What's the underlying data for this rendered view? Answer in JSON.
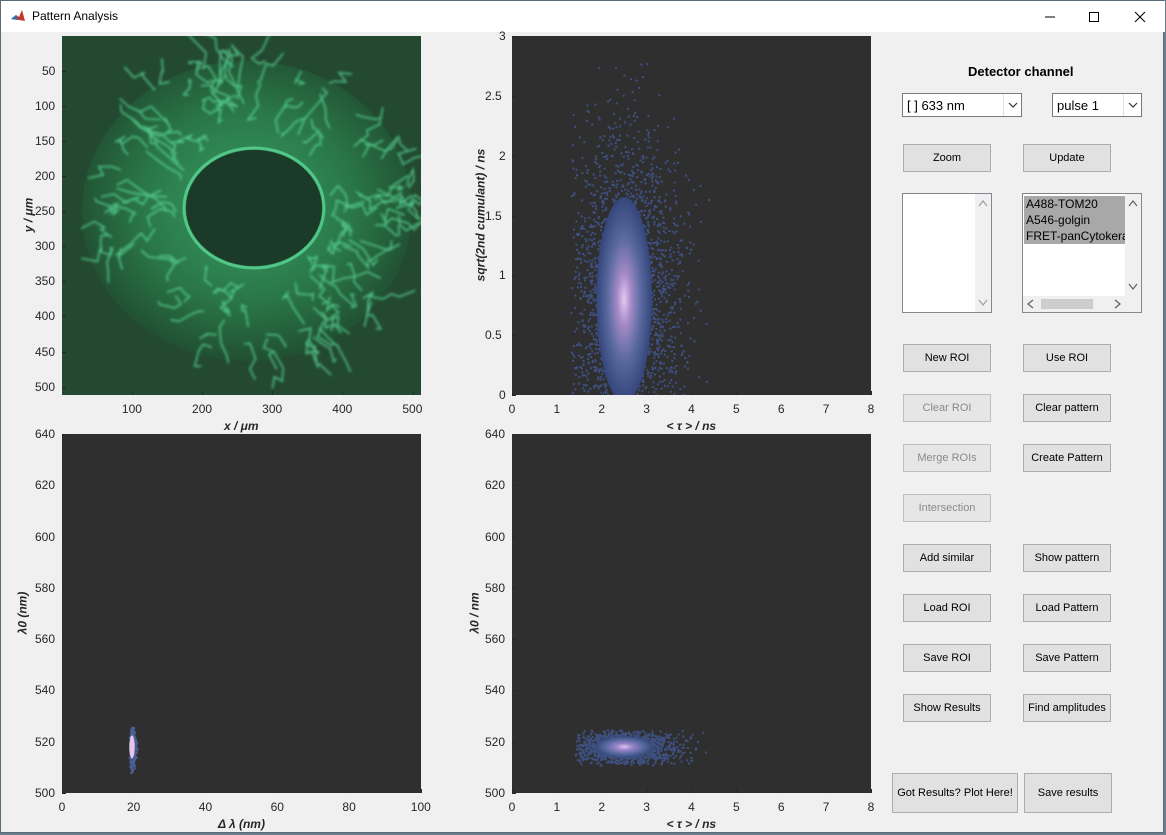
{
  "window": {
    "title": "Pattern Analysis"
  },
  "image_panel": {
    "ylabel": "y / μm",
    "xlabel": "x / μm",
    "yticks": [
      "50",
      "100",
      "150",
      "200",
      "250",
      "300",
      "350",
      "400",
      "450",
      "500"
    ],
    "xticks": [
      "100",
      "200",
      "300",
      "400",
      "500"
    ]
  },
  "scatter_top": {
    "ylabel": "sqrt(2nd cumulant) / ns",
    "xlabel": "< τ > / ns",
    "yticks": [
      "0",
      "0.5",
      "1",
      "1.5",
      "2",
      "2.5",
      "3"
    ],
    "xticks": [
      "0",
      "1",
      "2",
      "3",
      "4",
      "5",
      "6",
      "7",
      "8"
    ]
  },
  "scatter_bottom_left": {
    "ylabel": "λ0 (nm)",
    "xlabel": "Δ λ (nm)",
    "yticks": [
      "500",
      "520",
      "540",
      "560",
      "580",
      "600",
      "620",
      "640"
    ],
    "xticks": [
      "0",
      "20",
      "40",
      "60",
      "80",
      "100"
    ]
  },
  "scatter_bottom_right": {
    "ylabel": "λ0 / nm",
    "xlabel": "< τ > / ns",
    "yticks": [
      "500",
      "520",
      "540",
      "560",
      "580",
      "600",
      "620",
      "640"
    ],
    "xticks": [
      "0",
      "1",
      "2",
      "3",
      "4",
      "5",
      "6",
      "7",
      "8"
    ]
  },
  "controls": {
    "header": "Detector channel",
    "channel_select": "[ ] 633 nm",
    "pulse_select": "pulse 1",
    "pattern_list": [
      "A488-TOM20",
      "A546-golgin",
      "FRET-panCytokeratin"
    ],
    "buttons": {
      "zoom": "Zoom",
      "update": "Update",
      "new_roi": "New ROI",
      "use_roi": "Use ROI",
      "clear_roi": "Clear ROI",
      "clear_pattern": "Clear pattern",
      "merge_rois": "Merge ROIs",
      "create_pattern": "Create Pattern",
      "intersection": "Intersection",
      "add_similar": "Add similar",
      "show_pattern": "Show pattern",
      "load_roi": "Load ROI",
      "load_pattern": "Load Pattern",
      "save_roi": "Save ROI",
      "save_pattern": "Save Pattern",
      "show_results": "Show Results",
      "find_amplitudes": "Find amplitudes",
      "plot_here": "Got Results? Plot Here!",
      "save_results": "Save results"
    }
  },
  "chart_data": [
    {
      "type": "heatmap",
      "title": "",
      "xlabel": "x / μm",
      "ylabel": "y / μm",
      "xlim": [
        0,
        512
      ],
      "ylim": [
        512,
        0
      ],
      "colors": [
        "#1f4a2e",
        "#4fcf8f"
      ]
    },
    {
      "type": "scatter",
      "title": "",
      "xlabel": "< τ > / ns",
      "ylabel": "sqrt(2nd cumulant) / ns",
      "xlim": [
        0,
        8
      ],
      "ylim": [
        0,
        3
      ],
      "density": {
        "center_x": 2.5,
        "center_y": 0.8,
        "x_range": [
          1.3,
          4.4
        ],
        "y_range": [
          0,
          2.85
        ]
      }
    },
    {
      "type": "scatter",
      "title": "",
      "xlabel": "Δ λ (nm)",
      "ylabel": "λ0 (nm)",
      "xlim": [
        0,
        100
      ],
      "ylim": [
        500,
        640
      ],
      "density": {
        "center_x": 19.5,
        "center_y": 518,
        "x_range": [
          18.5,
          21
        ],
        "y_range": [
          508,
          526
        ]
      }
    },
    {
      "type": "scatter",
      "title": "",
      "xlabel": "< τ > / ns",
      "ylabel": "λ0 / nm",
      "xlim": [
        0,
        8
      ],
      "ylim": [
        500,
        640
      ],
      "density": {
        "center_x": 2.5,
        "center_y": 518,
        "x_range": [
          1.4,
          4.3
        ],
        "y_range": [
          511,
          525
        ]
      }
    }
  ]
}
